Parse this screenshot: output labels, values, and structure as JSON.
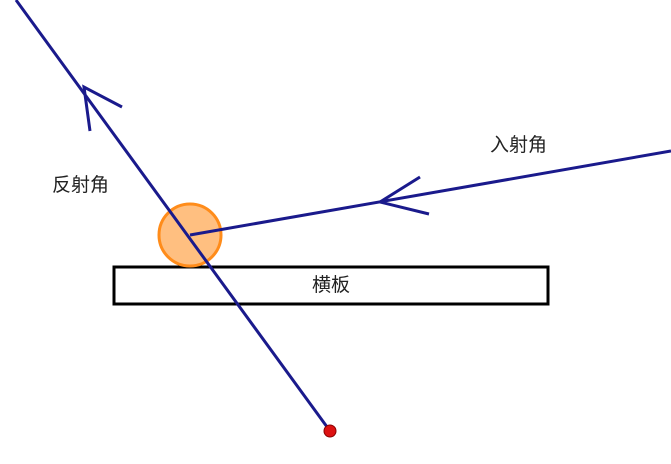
{
  "labels": {
    "reflection_angle": "反射角",
    "incidence_angle": "入射角",
    "board": "横板"
  },
  "colors": {
    "ray": "#1a1a8c",
    "ball_fill": "#ffbf80",
    "ball_stroke": "#ff8c1a",
    "point": "#dd1111",
    "board_stroke": "#000000",
    "background": "#ffffff"
  },
  "elements": {
    "incident_ray": {
      "direction": "toward-collision",
      "arrow": "arrowhead-open"
    },
    "reflected_ray": {
      "direction": "away-from-collision",
      "arrow": "arrowhead-open"
    },
    "collision_ball": {
      "shape": "circle"
    },
    "end_point": {
      "shape": "dot"
    },
    "board": {
      "shape": "rectangle"
    }
  }
}
